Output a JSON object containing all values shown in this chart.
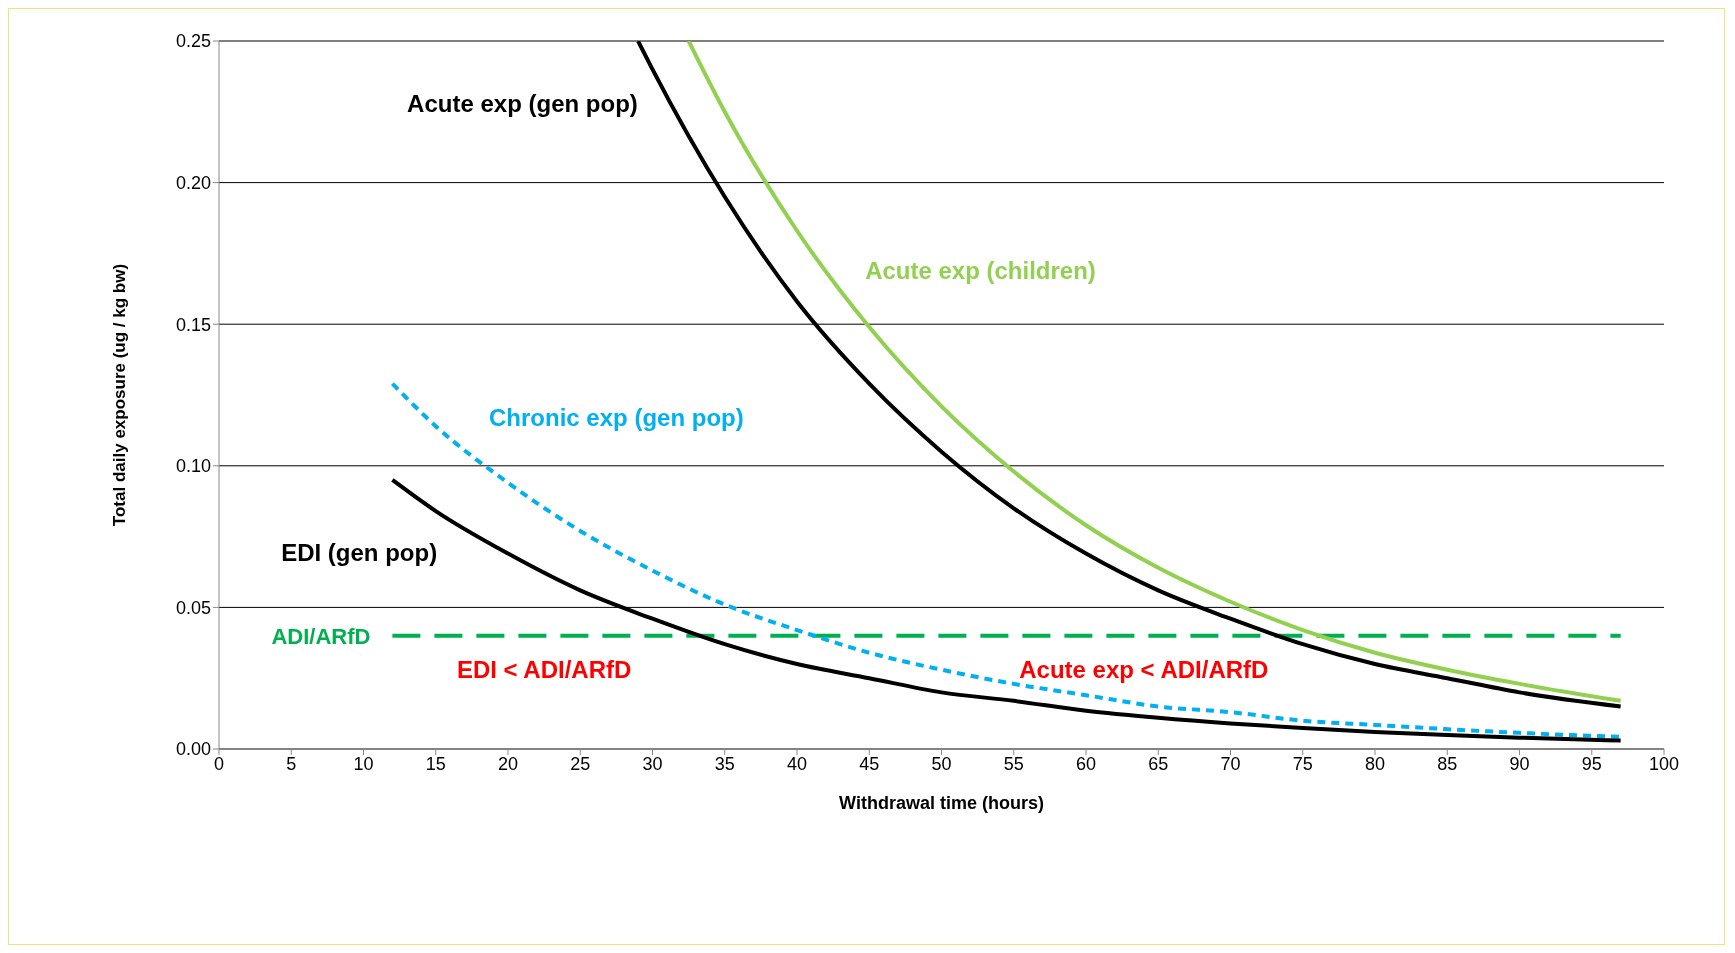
{
  "chart_data": {
    "type": "line",
    "xlabel": "Withdrawal time (hours)",
    "ylabel": "Total daily exposure (ug / kg bw)",
    "xlim": [
      0,
      100
    ],
    "xticks": [
      0,
      5,
      10,
      15,
      20,
      25,
      30,
      35,
      40,
      45,
      50,
      55,
      60,
      65,
      70,
      75,
      80,
      85,
      90,
      95,
      100
    ],
    "ylim": [
      0,
      0.25
    ],
    "yticks": [
      {
        "value": 0,
        "label": "0.00"
      },
      {
        "value": 0.05,
        "label": "0.05"
      },
      {
        "value": 0.1,
        "label": "0.10"
      },
      {
        "value": 0.15,
        "label": "0.15"
      },
      {
        "value": 0.2,
        "label": "0.20"
      },
      {
        "value": 0.25,
        "label": "0.25"
      }
    ],
    "grid": "y",
    "marker": "none",
    "series": [
      {
        "name": "Acute exp (gen pop)",
        "color": "#000000",
        "line_style": "solid",
        "x": [
          29,
          30,
          35,
          40,
          45,
          50,
          55,
          60,
          65,
          70,
          75,
          80,
          85,
          90,
          97
        ],
        "values": [
          0.25,
          0.24,
          0.195,
          0.158,
          0.129,
          0.105,
          0.085,
          0.069,
          0.056,
          0.046,
          0.037,
          0.03,
          0.025,
          0.02,
          0.015
        ]
      },
      {
        "name": "Acute exp (children)",
        "color": "#92d050",
        "line_style": "solid",
        "x": [
          32.5,
          35,
          40,
          45,
          50,
          55,
          60,
          65,
          70,
          75,
          80,
          85,
          90,
          97
        ],
        "values": [
          0.25,
          0.225,
          0.183,
          0.149,
          0.121,
          0.098,
          0.079,
          0.064,
          0.052,
          0.042,
          0.034,
          0.028,
          0.023,
          0.017
        ]
      },
      {
        "name": "Chronic exp (gen pop)",
        "color": "#00b0f0",
        "line_style": "dashed",
        "x": [
          12,
          15,
          20,
          25,
          30,
          35,
          40,
          45,
          50,
          55,
          60,
          65,
          70,
          75,
          80,
          85,
          90,
          97
        ],
        "values": [
          0.129,
          0.114,
          0.094,
          0.077,
          0.063,
          0.051,
          0.042,
          0.034,
          0.028,
          0.023,
          0.019,
          0.015,
          0.013,
          0.01,
          0.0085,
          0.007,
          0.0057,
          0.0043
        ]
      },
      {
        "name": "EDI (gen pop)",
        "color": "#000000",
        "line_style": "solid",
        "x": [
          12,
          15,
          20,
          25,
          30,
          35,
          40,
          45,
          50,
          55,
          60,
          65,
          70,
          75,
          80,
          85,
          90,
          97
        ],
        "values": [
          0.095,
          0.084,
          0.069,
          0.056,
          0.046,
          0.037,
          0.03,
          0.025,
          0.02,
          0.017,
          0.0135,
          0.011,
          0.009,
          0.0074,
          0.006,
          0.0049,
          0.004,
          0.003
        ]
      }
    ],
    "ref_lines": [
      {
        "axis": "y",
        "value": 0.04,
        "label": "ADI/ARfD",
        "color": "#00b050",
        "line_style": "dashed"
      }
    ],
    "annotations": [
      "EDI < ADI/ARfD",
      "Acute exp < ADI/ARfD"
    ]
  }
}
